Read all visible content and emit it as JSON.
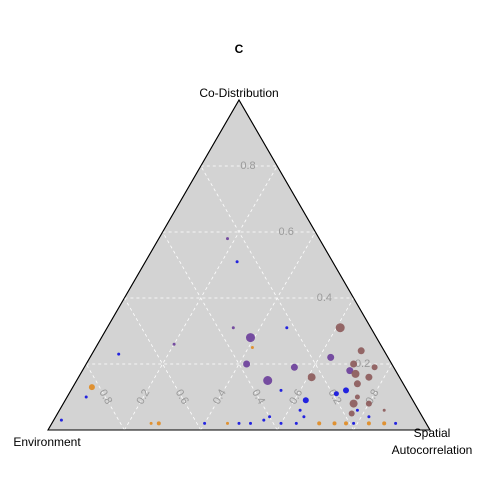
{
  "chart_data": {
    "type": "scatter",
    "subtype": "ternary",
    "title": "C",
    "axes": {
      "top": "Co-Distribution",
      "left": "Environment",
      "right_line1": "Spatial",
      "right_line2": "Autocorrelation"
    },
    "ticks": [
      0.2,
      0.4,
      0.6,
      0.8
    ],
    "tick_labels": [
      "0.2",
      "0.4",
      "0.6",
      "0.8"
    ],
    "grid": true,
    "panel_fill": "#d3d3d3",
    "colors": {
      "blue": "#1010e0",
      "purple": "#6a3d9a",
      "brown": "#8c5a5a",
      "orange": "#e08a20"
    },
    "points": [
      {
        "env": 0.25,
        "spa": 0.24,
        "codist": 0.51,
        "color": "blue",
        "size": 1.5
      },
      {
        "env": 0.24,
        "spa": 0.18,
        "codist": 0.58,
        "color": "purple",
        "size": 1.5
      },
      {
        "env": 0.7,
        "spa": 0.07,
        "codist": 0.23,
        "color": "blue",
        "size": 1.5
      },
      {
        "env": 0.54,
        "spa": 0.2,
        "codist": 0.26,
        "color": "purple",
        "size": 1.5
      },
      {
        "env": 0.36,
        "spa": 0.33,
        "codist": 0.31,
        "color": "purple",
        "size": 1.5
      },
      {
        "env": 0.33,
        "spa": 0.39,
        "codist": 0.28,
        "color": "purple",
        "size": 4.5
      },
      {
        "env": 0.34,
        "spa": 0.41,
        "codist": 0.25,
        "color": "orange",
        "size": 1.5
      },
      {
        "env": 0.38,
        "spa": 0.42,
        "codist": 0.2,
        "color": "purple",
        "size": 3.5
      },
      {
        "env": 0.35,
        "spa": 0.5,
        "codist": 0.15,
        "color": "purple",
        "size": 4.5
      },
      {
        "env": 0.33,
        "spa": 0.55,
        "codist": 0.12,
        "color": "blue",
        "size": 1.5
      },
      {
        "env": 0.28,
        "spa": 0.63,
        "codist": 0.09,
        "color": "blue",
        "size": 3.0
      },
      {
        "env": 0.31,
        "spa": 0.63,
        "codist": 0.06,
        "color": "blue",
        "size": 1.5
      },
      {
        "env": 0.31,
        "spa": 0.65,
        "codist": 0.04,
        "color": "blue",
        "size": 1.5
      },
      {
        "env": 0.72,
        "spa": 0.26,
        "codist": 0.02,
        "color": "orange",
        "size": 1.5
      },
      {
        "env": 0.7,
        "spa": 0.28,
        "codist": 0.02,
        "color": "orange",
        "size": 2.0
      },
      {
        "env": 0.82,
        "spa": 0.05,
        "codist": 0.13,
        "color": "orange",
        "size": 3.0
      },
      {
        "env": 0.85,
        "spa": 0.05,
        "codist": 0.1,
        "color": "blue",
        "size": 1.5
      },
      {
        "env": 0.95,
        "spa": 0.02,
        "codist": 0.03,
        "color": "blue",
        "size": 1.5
      },
      {
        "env": 0.22,
        "spa": 0.47,
        "codist": 0.31,
        "color": "blue",
        "size": 1.5
      },
      {
        "env": 0.26,
        "spa": 0.55,
        "codist": 0.19,
        "color": "purple",
        "size": 3.5
      },
      {
        "env": 0.23,
        "spa": 0.61,
        "codist": 0.16,
        "color": "brown",
        "size": 4.0
      },
      {
        "env": 0.15,
        "spa": 0.63,
        "codist": 0.22,
        "color": "purple",
        "size": 3.5
      },
      {
        "env": 0.12,
        "spa": 0.7,
        "codist": 0.18,
        "color": "purple",
        "size": 3.5
      },
      {
        "env": 0.11,
        "spa": 0.72,
        "codist": 0.17,
        "color": "brown",
        "size": 4.0
      },
      {
        "env": 0.1,
        "spa": 0.7,
        "codist": 0.2,
        "color": "brown",
        "size": 3.5
      },
      {
        "env": 0.08,
        "spa": 0.61,
        "codist": 0.31,
        "color": "brown",
        "size": 4.5
      },
      {
        "env": 0.06,
        "spa": 0.7,
        "codist": 0.24,
        "color": "brown",
        "size": 3.5
      },
      {
        "env": 0.05,
        "spa": 0.76,
        "codist": 0.19,
        "color": "brown",
        "size": 3.0
      },
      {
        "env": 0.12,
        "spa": 0.74,
        "codist": 0.14,
        "color": "brown",
        "size": 3.5
      },
      {
        "env": 0.08,
        "spa": 0.76,
        "codist": 0.16,
        "color": "brown",
        "size": 3.5
      },
      {
        "env": 0.16,
        "spa": 0.72,
        "codist": 0.12,
        "color": "blue",
        "size": 3.0
      },
      {
        "env": 0.19,
        "spa": 0.7,
        "codist": 0.11,
        "color": "blue",
        "size": 2.5
      },
      {
        "env": 0.14,
        "spa": 0.76,
        "codist": 0.1,
        "color": "brown",
        "size": 2.5
      },
      {
        "env": 0.16,
        "spa": 0.76,
        "codist": 0.08,
        "color": "brown",
        "size": 4.0
      },
      {
        "env": 0.18,
        "spa": 0.77,
        "codist": 0.05,
        "color": "brown",
        "size": 3.0
      },
      {
        "env": 0.12,
        "spa": 0.8,
        "codist": 0.08,
        "color": "brown",
        "size": 3.0
      },
      {
        "env": 0.09,
        "spa": 0.85,
        "codist": 0.06,
        "color": "brown",
        "size": 1.5
      },
      {
        "env": 0.28,
        "spa": 0.7,
        "codist": 0.02,
        "color": "orange",
        "size": 2.0
      },
      {
        "env": 0.21,
        "spa": 0.77,
        "codist": 0.02,
        "color": "orange",
        "size": 2.0
      },
      {
        "env": 0.24,
        "spa": 0.74,
        "codist": 0.02,
        "color": "orange",
        "size": 2.0
      },
      {
        "env": 0.19,
        "spa": 0.79,
        "codist": 0.02,
        "color": "blue",
        "size": 1.5
      },
      {
        "env": 0.15,
        "spa": 0.83,
        "codist": 0.02,
        "color": "orange",
        "size": 2.0
      },
      {
        "env": 0.11,
        "spa": 0.87,
        "codist": 0.02,
        "color": "orange",
        "size": 2.0
      },
      {
        "env": 0.58,
        "spa": 0.4,
        "codist": 0.02,
        "color": "blue",
        "size": 1.5
      },
      {
        "env": 0.52,
        "spa": 0.46,
        "codist": 0.02,
        "color": "orange",
        "size": 1.5
      },
      {
        "env": 0.49,
        "spa": 0.49,
        "codist": 0.02,
        "color": "blue",
        "size": 1.5
      },
      {
        "env": 0.46,
        "spa": 0.52,
        "codist": 0.02,
        "color": "blue",
        "size": 1.5
      },
      {
        "env": 0.34,
        "spa": 0.64,
        "codist": 0.02,
        "color": "blue",
        "size": 1.5
      },
      {
        "env": 0.38,
        "spa": 0.6,
        "codist": 0.02,
        "color": "blue",
        "size": 1.5
      },
      {
        "env": 0.42,
        "spa": 0.55,
        "codist": 0.03,
        "color": "blue",
        "size": 1.5
      },
      {
        "env": 0.4,
        "spa": 0.56,
        "codist": 0.04,
        "color": "blue",
        "size": 1.5
      },
      {
        "env": 0.08,
        "spa": 0.9,
        "codist": 0.02,
        "color": "blue",
        "size": 1.5
      },
      {
        "env": 0.14,
        "spa": 0.82,
        "codist": 0.04,
        "color": "blue",
        "size": 1.5
      },
      {
        "env": 0.16,
        "spa": 0.78,
        "codist": 0.06,
        "color": "blue",
        "size": 1.5
      }
    ]
  }
}
